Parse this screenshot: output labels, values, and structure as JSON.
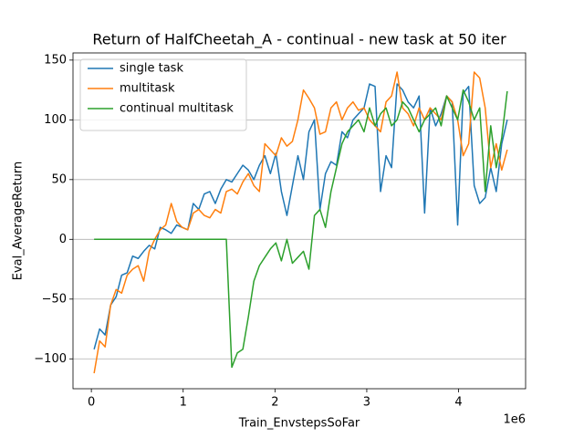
{
  "chart_data": {
    "type": "line",
    "title": "Return of HalfCheetah_A - continual - new task at 50 iter",
    "x_label": "Train_EnvstepsSoFar",
    "x_scale_label": "1e6",
    "y_label": "Eval_AverageReturn",
    "x": [
      0.03,
      0.09,
      0.15,
      0.21,
      0.27,
      0.33,
      0.39,
      0.45,
      0.51,
      0.57,
      0.63,
      0.69,
      0.75,
      0.81,
      0.87,
      0.93,
      0.99,
      1.05,
      1.11,
      1.17,
      1.23,
      1.29,
      1.35,
      1.41,
      1.47,
      1.53,
      1.59,
      1.65,
      1.71,
      1.77,
      1.83,
      1.89,
      1.95,
      2.01,
      2.07,
      2.13,
      2.19,
      2.25,
      2.31,
      2.37,
      2.43,
      2.49,
      2.55,
      2.61,
      2.67,
      2.73,
      2.79,
      2.85,
      2.91,
      2.97,
      3.03,
      3.09,
      3.15,
      3.21,
      3.27,
      3.33,
      3.39,
      3.45,
      3.51,
      3.57,
      3.63,
      3.69,
      3.75,
      3.81,
      3.87,
      3.93,
      3.99,
      4.05,
      4.11,
      4.17,
      4.23,
      4.29,
      4.35,
      4.41,
      4.47,
      4.53
    ],
    "series": [
      {
        "name": "single task",
        "color": "#1f77b4",
        "values": [
          -92,
          -75,
          -80,
          -55,
          -48,
          -30,
          -28,
          -14,
          -16,
          -10,
          -5,
          -8,
          10,
          8,
          5,
          12,
          10,
          8,
          30,
          25,
          38,
          40,
          30,
          42,
          50,
          48,
          55,
          62,
          58,
          50,
          62,
          70,
          55,
          72,
          40,
          20,
          45,
          70,
          50,
          90,
          100,
          25,
          55,
          65,
          62,
          90,
          85,
          100,
          105,
          110,
          130,
          128,
          40,
          70,
          60,
          130,
          125,
          115,
          110,
          120,
          22,
          110,
          95,
          105,
          120,
          115,
          12,
          122,
          128,
          45,
          30,
          35,
          60,
          40,
          80,
          100
        ]
      },
      {
        "name": "multitask",
        "color": "#ff7f0e",
        "values": [
          -112,
          -85,
          -90,
          -55,
          -42,
          -45,
          -30,
          -25,
          -22,
          -35,
          -10,
          0,
          8,
          12,
          30,
          15,
          10,
          8,
          22,
          25,
          20,
          18,
          25,
          22,
          40,
          42,
          38,
          48,
          55,
          45,
          40,
          80,
          75,
          70,
          85,
          78,
          82,
          100,
          125,
          118,
          110,
          88,
          90,
          110,
          115,
          100,
          110,
          115,
          108,
          110,
          100,
          95,
          90,
          115,
          120,
          140,
          110,
          105,
          95,
          110,
          100,
          110,
          105,
          100,
          120,
          115,
          100,
          70,
          80,
          140,
          135,
          110,
          60,
          80,
          58,
          75
        ]
      },
      {
        "name": "continual multitask",
        "color": "#2ca02c",
        "values": [
          0,
          0,
          0,
          0,
          0,
          0,
          0,
          0,
          0,
          0,
          0,
          0,
          0,
          0,
          0,
          0,
          0,
          0,
          0,
          0,
          0,
          0,
          0,
          0,
          0,
          -107,
          -95,
          -92,
          -65,
          -35,
          -22,
          -15,
          -8,
          -3,
          -18,
          0,
          -20,
          -15,
          -10,
          -25,
          20,
          25,
          10,
          40,
          60,
          80,
          90,
          95,
          100,
          90,
          110,
          95,
          105,
          110,
          95,
          100,
          115,
          110,
          100,
          90,
          100,
          105,
          110,
          95,
          120,
          110,
          100,
          125,
          115,
          100,
          110,
          40,
          95,
          60,
          85,
          124
        ]
      }
    ],
    "xlim": [
      -0.2,
      4.73
    ],
    "ylim": [
      -125,
      156
    ],
    "xticks": [
      0,
      1,
      2,
      3,
      4
    ],
    "yticks": [
      {
        "value": -100,
        "label": "−100"
      },
      {
        "value": -50,
        "label": "−50"
      },
      0,
      50,
      100,
      150
    ],
    "grid": "y",
    "legend": "upper left"
  }
}
